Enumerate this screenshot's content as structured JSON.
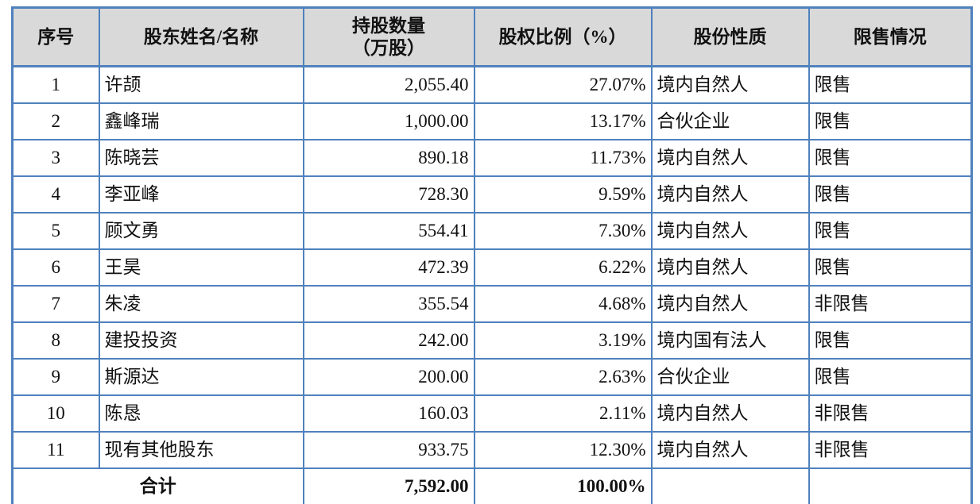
{
  "colors": {
    "border_blue": "#4f81bd",
    "header_bg": "#d9d9d9",
    "body_bg": "#ffffff",
    "text": "#111111"
  },
  "table": {
    "columns": [
      {
        "key": "index",
        "label_lines": [
          "序号"
        ]
      },
      {
        "key": "name",
        "label_lines": [
          "股东姓名/名称"
        ]
      },
      {
        "key": "shares",
        "label_lines": [
          "持股数量",
          "（万股）"
        ]
      },
      {
        "key": "ratio",
        "label_lines": [
          "股权比例（%）"
        ]
      },
      {
        "key": "nature",
        "label_lines": [
          "股份性质"
        ]
      },
      {
        "key": "restriction",
        "label_lines": [
          "限售情况"
        ]
      }
    ],
    "rows": [
      {
        "index": "1",
        "name": "许颉",
        "shares": "2,055.40",
        "ratio": "27.07%",
        "nature": "境内自然人",
        "restriction": "限售"
      },
      {
        "index": "2",
        "name": "鑫峰瑞",
        "shares": "1,000.00",
        "ratio": "13.17%",
        "nature": "合伙企业",
        "restriction": "限售"
      },
      {
        "index": "3",
        "name": "陈晓芸",
        "shares": "890.18",
        "ratio": "11.73%",
        "nature": "境内自然人",
        "restriction": "限售"
      },
      {
        "index": "4",
        "name": "李亚峰",
        "shares": "728.30",
        "ratio": "9.59%",
        "nature": "境内自然人",
        "restriction": "限售"
      },
      {
        "index": "5",
        "name": "顾文勇",
        "shares": "554.41",
        "ratio": "7.30%",
        "nature": "境内自然人",
        "restriction": "限售"
      },
      {
        "index": "6",
        "name": "王昊",
        "shares": "472.39",
        "ratio": "6.22%",
        "nature": "境内自然人",
        "restriction": "限售"
      },
      {
        "index": "7",
        "name": "朱凌",
        "shares": "355.54",
        "ratio": "4.68%",
        "nature": "境内自然人",
        "restriction": "非限售"
      },
      {
        "index": "8",
        "name": "建投投资",
        "shares": "242.00",
        "ratio": "3.19%",
        "nature": "境内国有法人",
        "restriction": "限售"
      },
      {
        "index": "9",
        "name": "斯源达",
        "shares": "200.00",
        "ratio": "2.63%",
        "nature": "合伙企业",
        "restriction": "限售"
      },
      {
        "index": "10",
        "name": "陈恳",
        "shares": "160.03",
        "ratio": "2.11%",
        "nature": "境内自然人",
        "restriction": "非限售"
      },
      {
        "index": "11",
        "name": "现有其他股东",
        "shares": "933.75",
        "ratio": "12.30%",
        "nature": "境内自然人",
        "restriction": "非限售"
      }
    ],
    "total": {
      "label": "合计",
      "shares": "7,592.00",
      "ratio": "100.00%",
      "nature": "",
      "restriction": ""
    }
  }
}
